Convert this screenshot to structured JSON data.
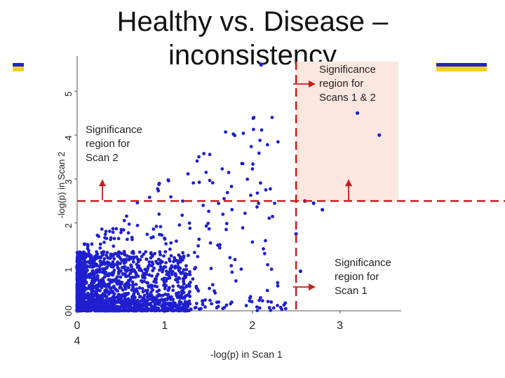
{
  "title_line1": "Healthy vs. Disease –",
  "title_line2": "inconsistency",
  "chart_data": {
    "type": "scatter",
    "xlabel": "-log(p) in Scan 1",
    "ylabel": "-log(p) in Scan 2",
    "xlim": [
      0,
      3.7
    ],
    "ylim": [
      0,
      5.8
    ],
    "xticks": [
      "0",
      "1",
      "2",
      "3"
    ],
    "x_tick_sub": "4",
    "yticks": [
      "0",
      "1",
      "2",
      "3",
      "4",
      "5"
    ],
    "y_tick_sub": "0",
    "threshold_x": 2.5,
    "threshold_y": 2.5,
    "marker_color": "#1f1fd0",
    "threshold_color": "#c81e1e",
    "region_color": "#fbe6e0",
    "highlight_points": [
      {
        "x": 2.1,
        "y": 5.6
      },
      {
        "x": 3.2,
        "y": 4.5
      },
      {
        "x": 3.45,
        "y": 4.0
      },
      {
        "x": 2.6,
        "y": 2.5
      },
      {
        "x": 2.7,
        "y": 2.45
      },
      {
        "x": 2.8,
        "y": 2.3
      },
      {
        "x": 2.5,
        "y": 1.75
      },
      {
        "x": 2.55,
        "y": 0.9
      }
    ],
    "annotations": {
      "both": [
        "Significance",
        "region for",
        "Scans 1 & 2"
      ],
      "scan2": [
        "Significance",
        "region for",
        "Scan 2"
      ],
      "scan1": [
        "Significance",
        "region for",
        "Scan 1"
      ]
    }
  },
  "legend_colors": [
    "#2222cc",
    "#f0d020"
  ]
}
